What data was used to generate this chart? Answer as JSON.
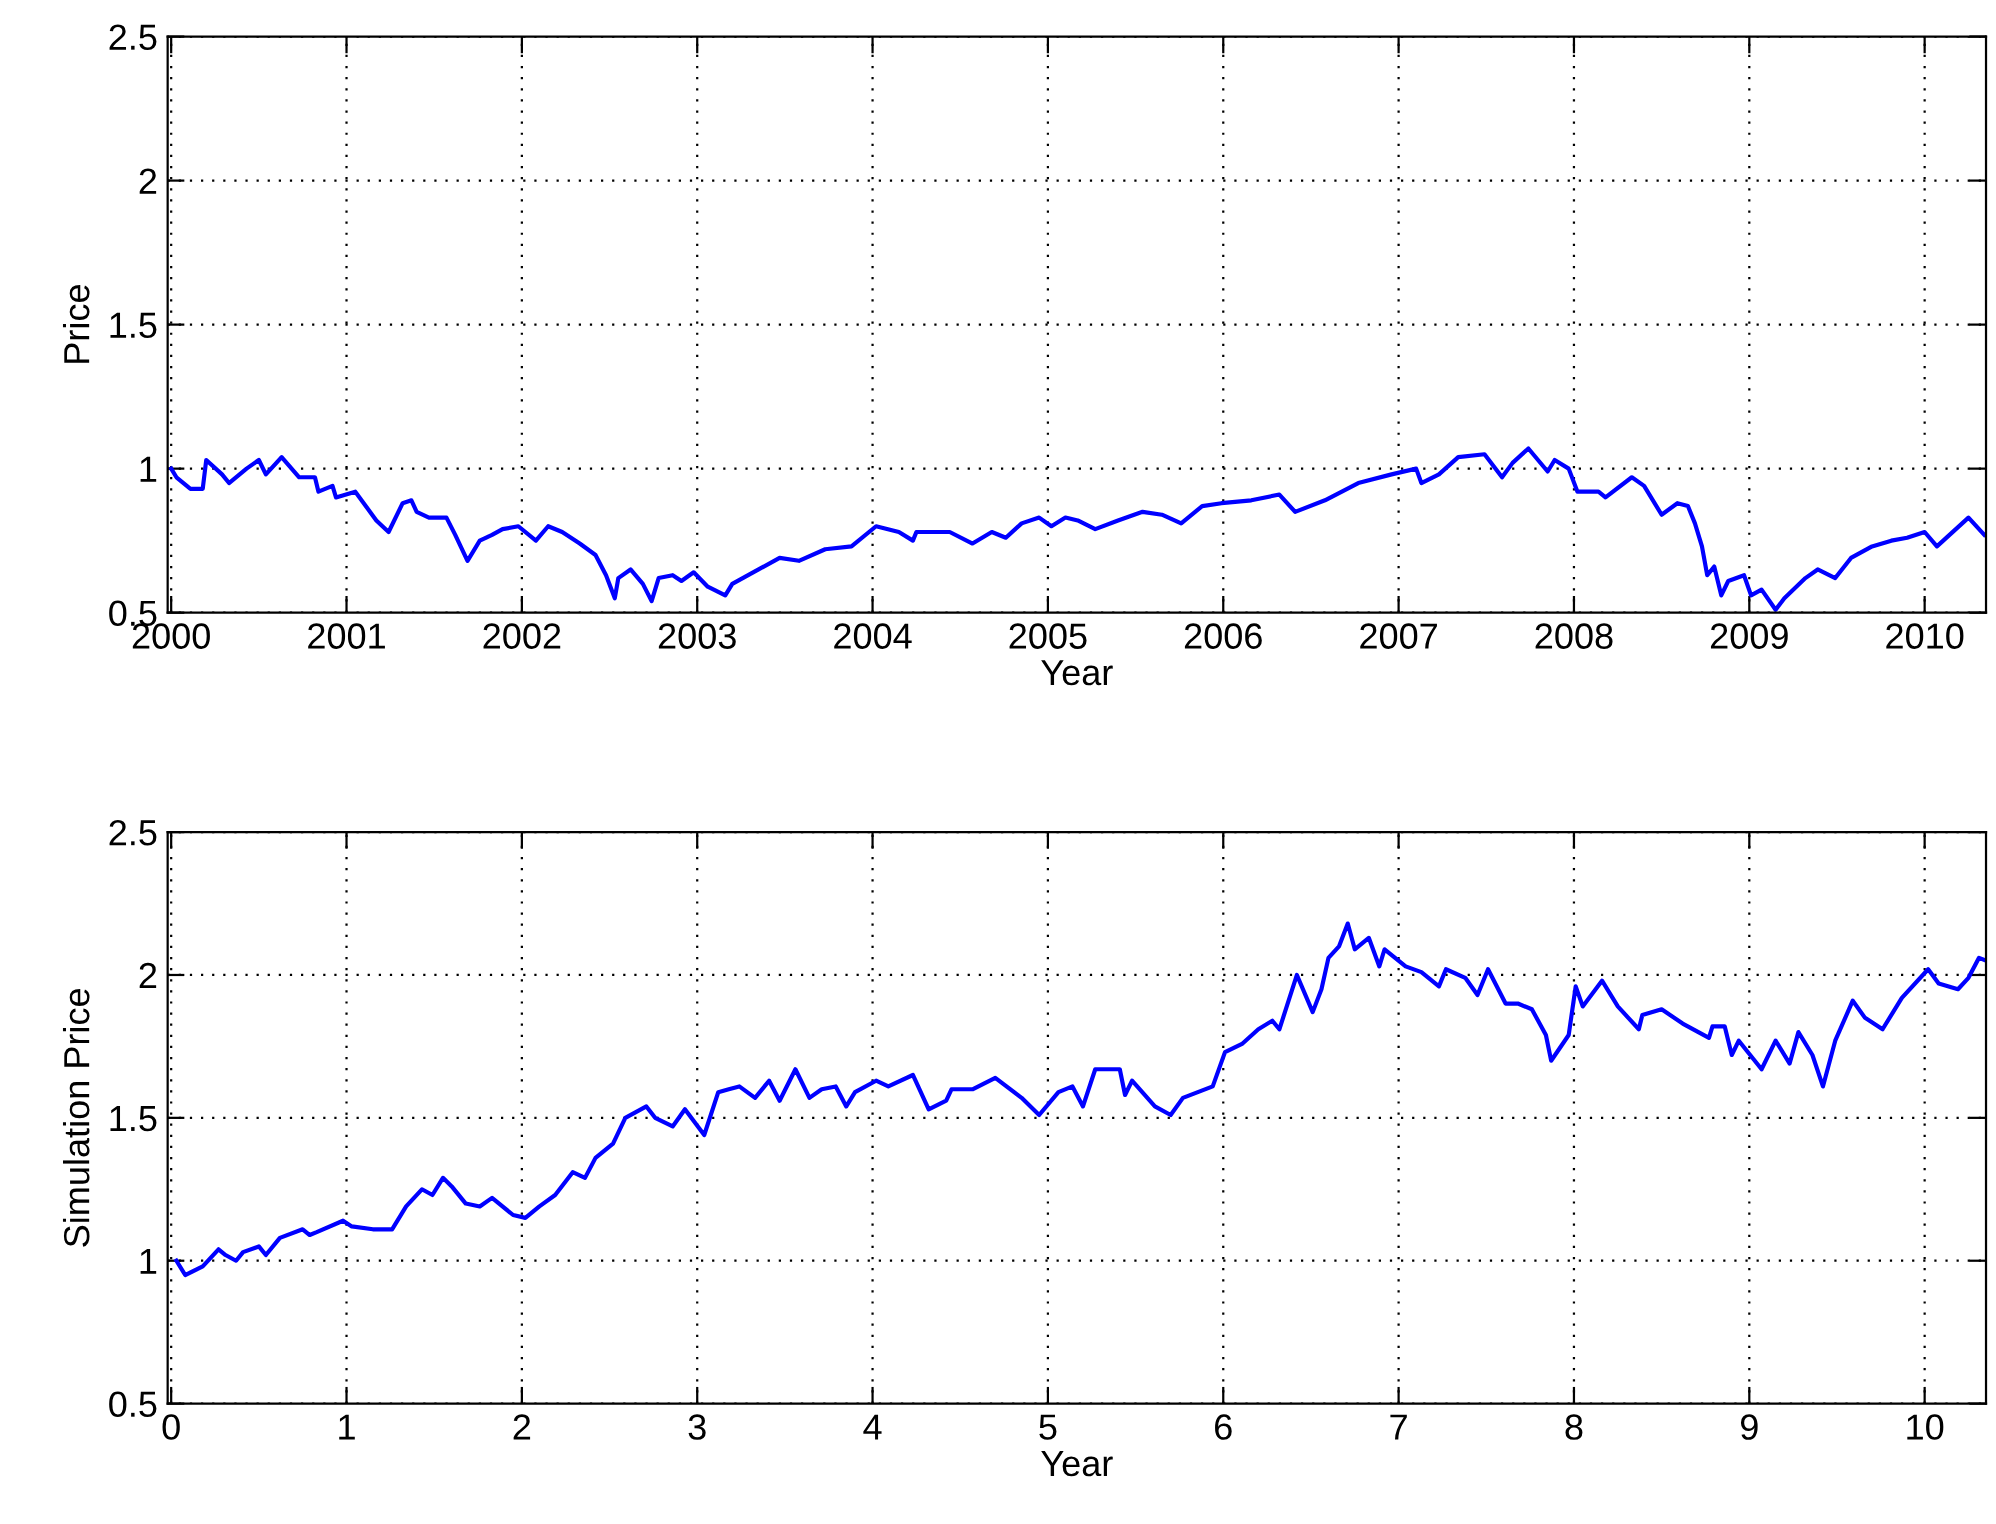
{
  "chart_data": [
    {
      "type": "line",
      "ylabel": "Price",
      "xlabel": "Year",
      "xlim": [
        1999.98,
        2010.35
      ],
      "ylim": [
        0.5,
        2.5
      ],
      "xticks": [
        2000,
        2001,
        2002,
        2003,
        2004,
        2005,
        2006,
        2007,
        2008,
        2009,
        2010
      ],
      "yticks": [
        0.5,
        1,
        1.5,
        2,
        2.5
      ],
      "grid": true,
      "line_style": "solid",
      "marker": "none",
      "series": [
        {
          "color": "#0000ff",
          "x": [
            2000.0,
            2000.03,
            2000.11,
            2000.18,
            2000.2,
            2000.29,
            2000.33,
            2000.43,
            2000.5,
            2000.54,
            2000.63,
            2000.73,
            2000.82,
            2000.84,
            2000.92,
            2000.94,
            2001.05,
            2001.17,
            2001.24,
            2001.32,
            2001.37,
            2001.4,
            2001.47,
            2001.57,
            2001.62,
            2001.69,
            2001.76,
            2001.83,
            2001.89,
            2001.98,
            2002.08,
            2002.15,
            2002.23,
            2002.33,
            2002.42,
            2002.48,
            2002.53,
            2002.55,
            2002.62,
            2002.69,
            2002.74,
            2002.78,
            2002.86,
            2002.91,
            2002.98,
            2003.06,
            2003.16,
            2003.2,
            2003.35,
            2003.47,
            2003.58,
            2003.73,
            2003.88,
            2004.02,
            2004.15,
            2004.23,
            2004.25,
            2004.44,
            2004.57,
            2004.68,
            2004.76,
            2004.85,
            2004.95,
            2005.02,
            2005.1,
            2005.17,
            2005.27,
            2005.4,
            2005.54,
            2005.65,
            2005.76,
            2005.88,
            2005.99,
            2006.16,
            2006.32,
            2006.41,
            2006.58,
            2006.77,
            2006.96,
            2007.1,
            2007.13,
            2007.23,
            2007.34,
            2007.49,
            2007.59,
            2007.65,
            2007.74,
            2007.85,
            2007.89,
            2007.97,
            2008.02,
            2008.14,
            2008.18,
            2008.33,
            2008.4,
            2008.5,
            2008.59,
            2008.65,
            2008.69,
            2008.73,
            2008.76,
            2008.8,
            2008.84,
            2008.88,
            2008.97,
            2009.01,
            2009.07,
            2009.15,
            2009.2,
            2009.32,
            2009.39,
            2009.49,
            2009.58,
            2009.7,
            2009.81,
            2009.9,
            2010.0,
            2010.07,
            2010.25,
            2010.34
          ],
          "values": [
            1.0,
            0.97,
            0.93,
            0.93,
            1.03,
            0.98,
            0.95,
            1.0,
            1.03,
            0.98,
            1.04,
            0.97,
            0.97,
            0.92,
            0.94,
            0.9,
            0.92,
            0.82,
            0.78,
            0.88,
            0.89,
            0.85,
            0.83,
            0.83,
            0.77,
            0.68,
            0.75,
            0.77,
            0.79,
            0.8,
            0.75,
            0.8,
            0.78,
            0.74,
            0.7,
            0.63,
            0.55,
            0.62,
            0.65,
            0.6,
            0.54,
            0.62,
            0.63,
            0.61,
            0.64,
            0.59,
            0.56,
            0.6,
            0.65,
            0.69,
            0.68,
            0.72,
            0.73,
            0.8,
            0.78,
            0.75,
            0.78,
            0.78,
            0.74,
            0.78,
            0.76,
            0.81,
            0.83,
            0.8,
            0.83,
            0.82,
            0.79,
            0.82,
            0.85,
            0.84,
            0.81,
            0.87,
            0.88,
            0.89,
            0.91,
            0.85,
            0.89,
            0.95,
            0.98,
            1.0,
            0.95,
            0.98,
            1.04,
            1.05,
            0.97,
            1.02,
            1.07,
            0.99,
            1.03,
            1.0,
            0.92,
            0.92,
            0.9,
            0.97,
            0.94,
            0.84,
            0.88,
            0.87,
            0.81,
            0.73,
            0.63,
            0.66,
            0.56,
            0.61,
            0.63,
            0.56,
            0.58,
            0.51,
            0.55,
            0.62,
            0.65,
            0.62,
            0.69,
            0.73,
            0.75,
            0.76,
            0.78,
            0.73,
            0.83,
            0.77
          ]
        }
      ]
    },
    {
      "type": "line",
      "ylabel": "Simulation Price",
      "xlabel": "Year",
      "xlim": [
        -0.02,
        10.35
      ],
      "ylim": [
        0.5,
        2.5
      ],
      "xticks": [
        0,
        1,
        2,
        3,
        4,
        5,
        6,
        7,
        8,
        9,
        10
      ],
      "yticks": [
        0.5,
        1,
        1.5,
        2,
        2.5
      ],
      "grid": true,
      "line_style": "solid",
      "marker": "none",
      "series": [
        {
          "color": "#0000ff",
          "x": [
            0.03,
            0.08,
            0.18,
            0.27,
            0.31,
            0.37,
            0.41,
            0.5,
            0.54,
            0.62,
            0.75,
            0.79,
            0.83,
            0.98,
            1.03,
            1.15,
            1.26,
            1.34,
            1.43,
            1.49,
            1.55,
            1.6,
            1.68,
            1.76,
            1.83,
            1.95,
            2.02,
            2.1,
            2.19,
            2.29,
            2.36,
            2.42,
            2.52,
            2.59,
            2.71,
            2.76,
            2.86,
            2.93,
            3.04,
            3.12,
            3.18,
            3.24,
            3.33,
            3.41,
            3.47,
            3.56,
            3.64,
            3.71,
            3.79,
            3.85,
            3.9,
            4.02,
            4.09,
            4.23,
            4.32,
            4.42,
            4.45,
            4.57,
            4.7,
            4.85,
            4.95,
            5.06,
            5.14,
            5.2,
            5.27,
            5.41,
            5.44,
            5.48,
            5.61,
            5.7,
            5.77,
            5.94,
            6.01,
            6.11,
            6.2,
            6.28,
            6.32,
            6.42,
            6.51,
            6.56,
            6.6,
            6.66,
            6.71,
            6.75,
            6.83,
            6.89,
            6.92,
            7.04,
            7.13,
            7.23,
            7.27,
            7.38,
            7.45,
            7.51,
            7.61,
            7.68,
            7.76,
            7.84,
            7.87,
            7.97,
            8.01,
            8.05,
            8.16,
            8.25,
            8.37,
            8.39,
            8.5,
            8.62,
            8.77,
            8.79,
            8.86,
            8.9,
            8.94,
            9.07,
            9.15,
            9.23,
            9.28,
            9.36,
            9.42,
            9.49,
            9.59,
            9.66,
            9.76,
            9.87,
            10.02,
            10.08,
            10.19,
            10.25,
            10.31,
            10.35
          ],
          "values": [
            1.0,
            0.95,
            0.98,
            1.04,
            1.02,
            1.0,
            1.03,
            1.05,
            1.02,
            1.08,
            1.11,
            1.09,
            1.1,
            1.14,
            1.12,
            1.11,
            1.11,
            1.19,
            1.25,
            1.23,
            1.29,
            1.26,
            1.2,
            1.19,
            1.22,
            1.16,
            1.15,
            1.19,
            1.23,
            1.31,
            1.29,
            1.36,
            1.41,
            1.5,
            1.54,
            1.5,
            1.47,
            1.53,
            1.44,
            1.59,
            1.6,
            1.61,
            1.57,
            1.63,
            1.56,
            1.67,
            1.57,
            1.6,
            1.61,
            1.54,
            1.59,
            1.63,
            1.61,
            1.65,
            1.53,
            1.56,
            1.6,
            1.6,
            1.64,
            1.57,
            1.51,
            1.59,
            1.61,
            1.54,
            1.67,
            1.67,
            1.58,
            1.63,
            1.54,
            1.51,
            1.57,
            1.61,
            1.73,
            1.76,
            1.81,
            1.84,
            1.81,
            2.0,
            1.87,
            1.95,
            2.06,
            2.1,
            2.18,
            2.09,
            2.13,
            2.03,
            2.09,
            2.03,
            2.01,
            1.96,
            2.02,
            1.99,
            1.93,
            2.02,
            1.9,
            1.9,
            1.88,
            1.79,
            1.7,
            1.79,
            1.96,
            1.89,
            1.98,
            1.89,
            1.81,
            1.86,
            1.88,
            1.83,
            1.78,
            1.82,
            1.82,
            1.72,
            1.77,
            1.67,
            1.77,
            1.69,
            1.8,
            1.72,
            1.61,
            1.77,
            1.91,
            1.85,
            1.81,
            1.92,
            2.02,
            1.97,
            1.95,
            1.99,
            2.06,
            2.05
          ]
        }
      ]
    }
  ]
}
